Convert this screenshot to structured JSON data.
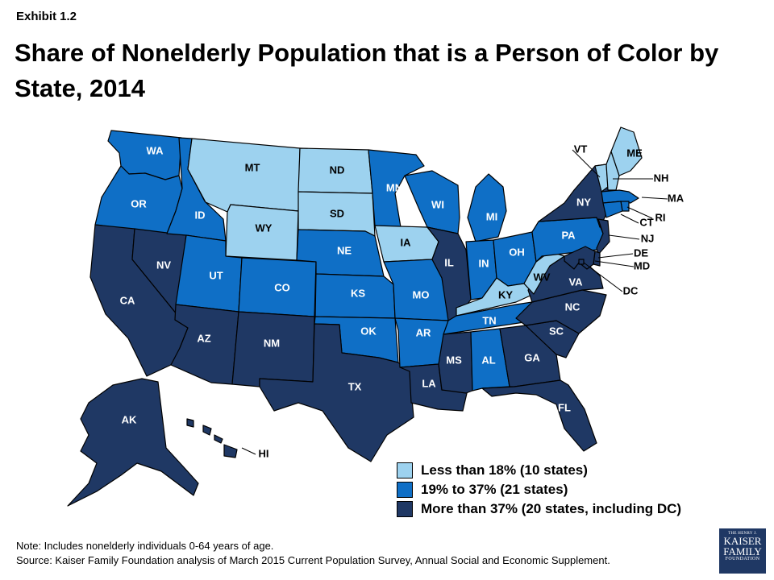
{
  "header": {
    "exhibit": "Exhibit 1.2",
    "title": "Share of Nonelderly Population that is a Person of Color by State, 2014"
  },
  "map_data": {
    "type": "choropleth",
    "colors": {
      "low": "#9dd2ef",
      "mid": "#0f6fc6",
      "high": "#1f3864",
      "border": "#000000"
    },
    "categories": [
      {
        "key": "low",
        "label": "Less than 18% (10 states)"
      },
      {
        "key": "mid",
        "label": "19% to 37% (21 states)"
      },
      {
        "key": "high",
        "label": "More than 37% (20 states, including DC)"
      }
    ],
    "states": [
      {
        "abbr": "WA",
        "cat": "mid"
      },
      {
        "abbr": "OR",
        "cat": "mid"
      },
      {
        "abbr": "CA",
        "cat": "high"
      },
      {
        "abbr": "NV",
        "cat": "high"
      },
      {
        "abbr": "ID",
        "cat": "mid"
      },
      {
        "abbr": "MT",
        "cat": "low"
      },
      {
        "abbr": "WY",
        "cat": "low"
      },
      {
        "abbr": "UT",
        "cat": "mid"
      },
      {
        "abbr": "AZ",
        "cat": "high"
      },
      {
        "abbr": "CO",
        "cat": "mid"
      },
      {
        "abbr": "NM",
        "cat": "high"
      },
      {
        "abbr": "ND",
        "cat": "low"
      },
      {
        "abbr": "SD",
        "cat": "low"
      },
      {
        "abbr": "NE",
        "cat": "mid"
      },
      {
        "abbr": "KS",
        "cat": "mid"
      },
      {
        "abbr": "OK",
        "cat": "mid"
      },
      {
        "abbr": "TX",
        "cat": "high"
      },
      {
        "abbr": "MN",
        "cat": "mid"
      },
      {
        "abbr": "IA",
        "cat": "low"
      },
      {
        "abbr": "MO",
        "cat": "mid"
      },
      {
        "abbr": "AR",
        "cat": "mid"
      },
      {
        "abbr": "LA",
        "cat": "high"
      },
      {
        "abbr": "WI",
        "cat": "mid"
      },
      {
        "abbr": "IL",
        "cat": "high"
      },
      {
        "abbr": "MI",
        "cat": "mid"
      },
      {
        "abbr": "IN",
        "cat": "mid"
      },
      {
        "abbr": "OH",
        "cat": "mid"
      },
      {
        "abbr": "KY",
        "cat": "low"
      },
      {
        "abbr": "TN",
        "cat": "mid"
      },
      {
        "abbr": "MS",
        "cat": "high"
      },
      {
        "abbr": "AL",
        "cat": "mid"
      },
      {
        "abbr": "GA",
        "cat": "high"
      },
      {
        "abbr": "FL",
        "cat": "high"
      },
      {
        "abbr": "SC",
        "cat": "high"
      },
      {
        "abbr": "NC",
        "cat": "high"
      },
      {
        "abbr": "VA",
        "cat": "high"
      },
      {
        "abbr": "WV",
        "cat": "low"
      },
      {
        "abbr": "PA",
        "cat": "mid"
      },
      {
        "abbr": "NY",
        "cat": "high"
      },
      {
        "abbr": "VT",
        "cat": "low"
      },
      {
        "abbr": "NH",
        "cat": "low"
      },
      {
        "abbr": "ME",
        "cat": "low"
      },
      {
        "abbr": "MA",
        "cat": "mid"
      },
      {
        "abbr": "RI",
        "cat": "mid"
      },
      {
        "abbr": "CT",
        "cat": "mid"
      },
      {
        "abbr": "NJ",
        "cat": "high"
      },
      {
        "abbr": "DE",
        "cat": "high"
      },
      {
        "abbr": "MD",
        "cat": "high"
      },
      {
        "abbr": "DC",
        "cat": "high"
      },
      {
        "abbr": "AK",
        "cat": "high"
      },
      {
        "abbr": "HI",
        "cat": "high"
      }
    ]
  },
  "footer": {
    "note": "Note: Includes nonelderly individuals 0-64 years of age.",
    "source": "Source: Kaiser Family Foundation analysis of March 2015 Current Population Survey, Annual Social and Economic Supplement.",
    "logo_small": "THE HENRY J.",
    "logo_line1": "KAISER",
    "logo_line2": "FAMILY",
    "logo_line3": "FOUNDATION"
  }
}
